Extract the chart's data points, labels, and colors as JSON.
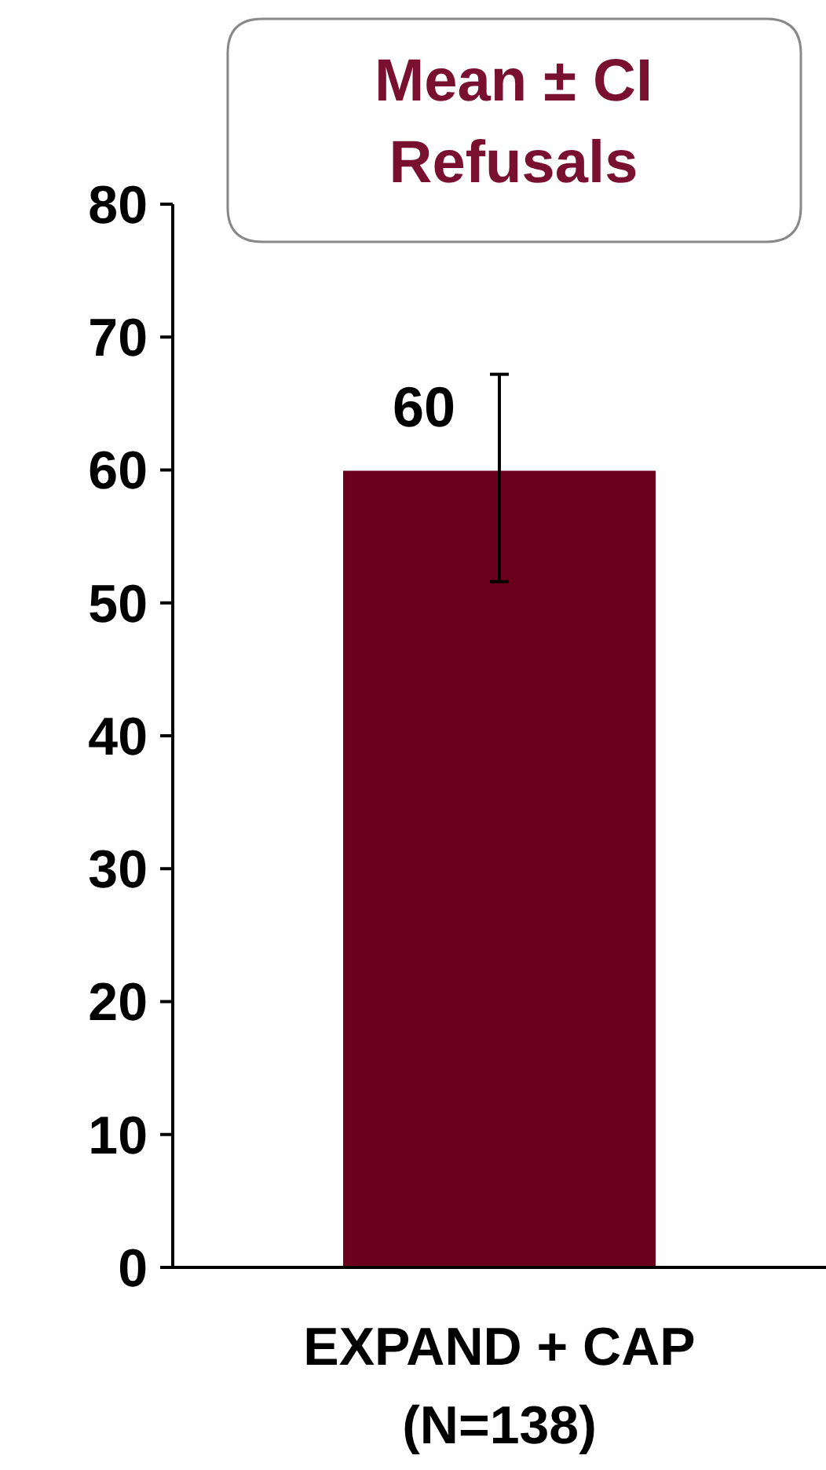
{
  "chart_data": {
    "type": "bar",
    "title": "Mean ± CI\nRefusals",
    "categories": [
      "EXPAND + CAP\n(N=138)"
    ],
    "values": [
      60
    ],
    "errors": [
      [
        51.6,
        67.2
      ]
    ],
    "color": "#6b001c",
    "data_labels": true,
    "ylim": [
      0,
      80
    ],
    "yticks": [
      0,
      10,
      20,
      30,
      40,
      50,
      60,
      70,
      80
    ]
  }
}
